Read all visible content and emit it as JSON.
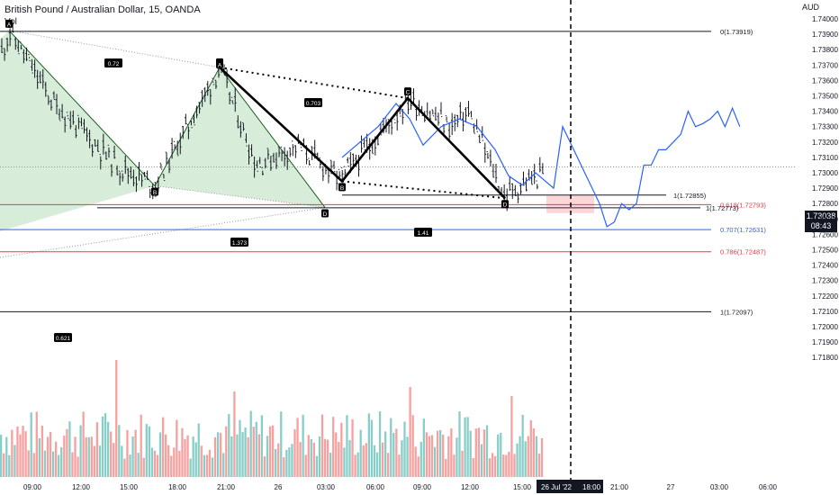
{
  "header": {
    "title": "British Pound / Australian Dollar, 15, OANDA",
    "indicator": "Vol",
    "currency": "AUD"
  },
  "last_price": {
    "value": "1.73038",
    "countdown": "08:43"
  },
  "chart_data": {
    "type": "line",
    "title": "British Pound / Australian Dollar, 15, OANDA",
    "ylim": [
      1.7175,
      1.7405
    ],
    "y_ticks": [
      "1.74000",
      "1.73900",
      "1.73800",
      "1.73700",
      "1.73600",
      "1.73500",
      "1.73400",
      "1.73300",
      "1.73200",
      "1.73100",
      "1.73000",
      "1.72900",
      "1.72800",
      "1.72700",
      "1.72600",
      "1.72500",
      "1.72400",
      "1.72300",
      "1.72200",
      "1.72100",
      "1.72000",
      "1.71900",
      "1.71800"
    ],
    "x_ticks": [
      "09:00",
      "12:00",
      "15:00",
      "18:00",
      "21:00",
      "26",
      "03:00",
      "06:00",
      "09:00",
      "12:00",
      "15:00",
      "21:00",
      "27",
      "03:00",
      "06:00"
    ],
    "x_highlight": [
      "26 Jul '22",
      "18:00"
    ],
    "harmonic_1": {
      "points": [
        "A",
        "B",
        "C",
        "D"
      ],
      "values": [
        1.73925,
        1.72915,
        1.73685,
        1.72775
      ],
      "ratios": [
        "0.72",
        "1.373",
        "0.621"
      ]
    },
    "harmonic_2": {
      "points": [
        "A",
        "B",
        "C",
        "D"
      ],
      "values": [
        1.73685,
        1.72945,
        1.73485,
        1.72835
      ],
      "ratios": [
        "0.703",
        "1.41"
      ]
    },
    "fib_levels": [
      {
        "label": "0(1.73919)",
        "value": 1.73919,
        "color": "#131722"
      },
      {
        "label": "1(1.72855)",
        "value": 1.72855,
        "color": "#131722"
      },
      {
        "label": "0.618(1.72793)",
        "value": 1.72793,
        "color": "#f23645"
      },
      {
        "label": "1(1.72773)",
        "value": 1.72773,
        "color": "#131722"
      },
      {
        "label": "0.707(1.72631)",
        "value": 1.72631,
        "color": "#2962ff"
      },
      {
        "label": "0.786(1.72487)",
        "value": 1.72487,
        "color": "#f23645"
      },
      {
        "label": "1(1.72097)",
        "value": 1.72097,
        "color": "#131722"
      }
    ],
    "projection": [
      1.733,
      1.732,
      1.731,
      1.73,
      1.729,
      1.728,
      1.7265,
      1.7268,
      1.728,
      1.7276,
      1.728,
      1.7305,
      1.7305,
      1.7315,
      1.7315,
      1.732,
      1.7325,
      1.734,
      1.733,
      1.7332,
      1.7335,
      1.734,
      1.733,
      1.7342,
      1.733
    ],
    "volume_bar_count": 200
  }
}
